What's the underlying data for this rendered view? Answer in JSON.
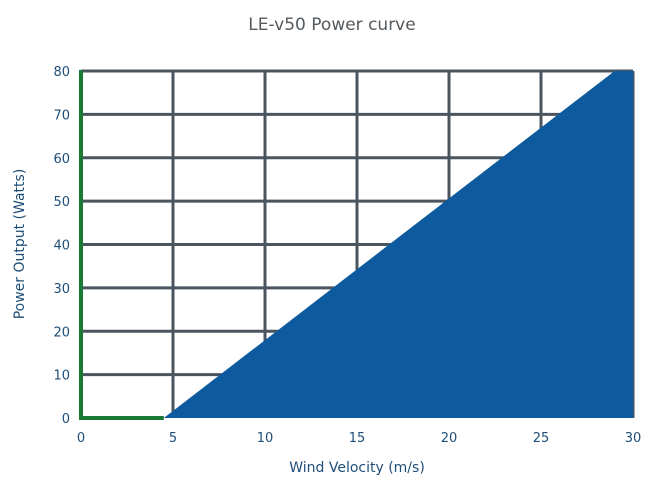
{
  "chart_data": {
    "type": "area",
    "title": "LE-v50 Power curve",
    "xlabel": "Wind Velocity (m/s)",
    "ylabel": "Power Output (Watts)",
    "xlim": [
      0,
      30
    ],
    "ylim": [
      0,
      80
    ],
    "x_ticks": [
      0,
      5,
      10,
      15,
      20,
      25,
      30
    ],
    "y_ticks": [
      0,
      10,
      20,
      30,
      40,
      50,
      60,
      70,
      80
    ],
    "grid": true,
    "series": [
      {
        "x": [
          0,
          4.5,
          29,
          30,
          30
        ],
        "y": [
          0,
          0,
          80,
          80,
          0
        ]
      }
    ],
    "colors": {
      "fill": "#0d5a9e",
      "grid": "#4a5560",
      "axis": "#1a7a33"
    }
  }
}
